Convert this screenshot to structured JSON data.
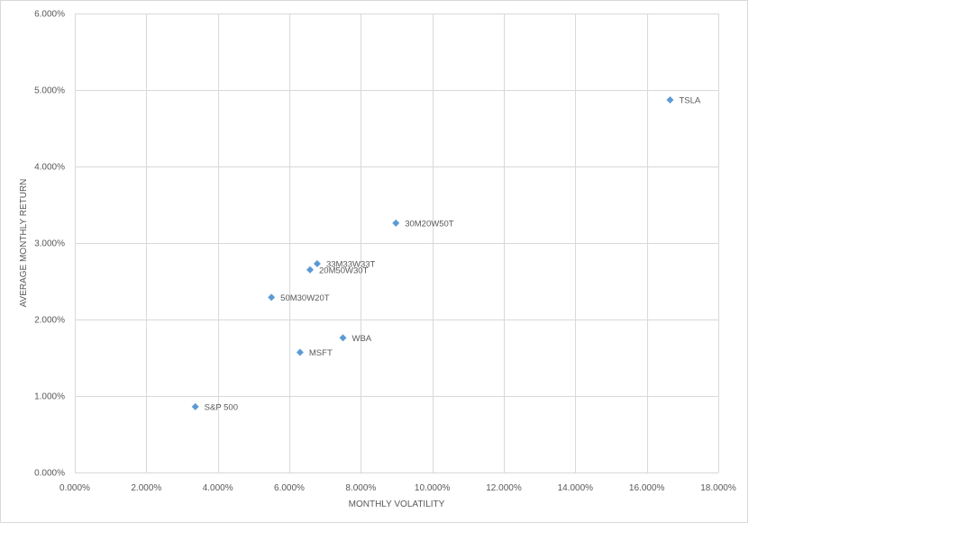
{
  "chart_data": {
    "type": "scatter",
    "xlabel": "MONTHLY VOLATILITY",
    "ylabel": "AVERAGE MONTHLY RETURN",
    "xlim": [
      0,
      18
    ],
    "ylim": [
      0,
      6
    ],
    "x_ticks": [
      0,
      2,
      4,
      6,
      8,
      10,
      12,
      14,
      16,
      18
    ],
    "y_ticks": [
      0,
      1,
      2,
      3,
      4,
      5,
      6
    ],
    "x_tick_labels": [
      "0.000%",
      "2.000%",
      "4.000%",
      "6.000%",
      "8.000%",
      "10.000%",
      "12.000%",
      "14.000%",
      "16.000%",
      "18.000%"
    ],
    "y_tick_labels": [
      "0.000%",
      "1.000%",
      "2.000%",
      "3.000%",
      "4.000%",
      "5.000%",
      "6.000%"
    ],
    "grid": true,
    "marker_color": "#5b9bd5",
    "points": [
      {
        "label": "TSLA",
        "x": 16.65,
        "y": 4.87
      },
      {
        "label": "30M20W50T",
        "x": 8.98,
        "y": 3.26
      },
      {
        "label": "33M33W33T",
        "x": 6.78,
        "y": 2.73
      },
      {
        "label": "20M50W30T",
        "x": 6.58,
        "y": 2.65
      },
      {
        "label": "50M30W20T",
        "x": 5.5,
        "y": 2.29
      },
      {
        "label": "WBA",
        "x": 7.5,
        "y": 1.76
      },
      {
        "label": "MSFT",
        "x": 6.3,
        "y": 1.57
      },
      {
        "label": "S&P 500",
        "x": 3.37,
        "y": 0.86
      }
    ]
  }
}
